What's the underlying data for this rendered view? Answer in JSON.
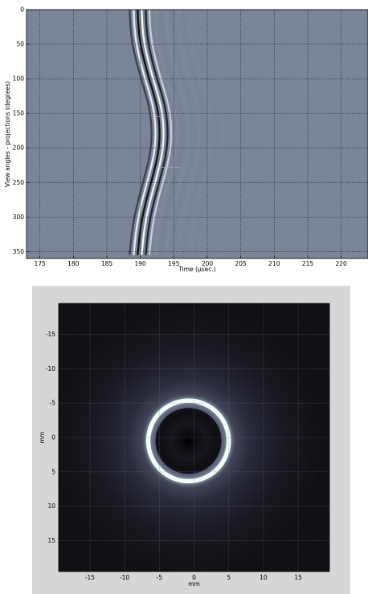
{
  "chart_data": [
    {
      "type": "heatmap",
      "title": "",
      "xlabel": "Time (μsec.)",
      "ylabel": "View angles - projections (degrees)",
      "xlim": [
        173,
        224
      ],
      "ylim": [
        0,
        360
      ],
      "y_inverted": true,
      "xticks": [
        175,
        180,
        185,
        190,
        195,
        200,
        205,
        210,
        215,
        220
      ],
      "yticks": [
        0,
        50,
        100,
        150,
        200,
        250,
        300,
        350
      ],
      "grid": true,
      "colormap": "gray",
      "background_color": "#7b8598",
      "series": [
        {
          "name": "",
          "x": [
            189.6,
            189.7,
            190.0,
            190.6,
            191.3,
            192.1,
            192.7,
            192.9,
            192.8,
            192.3,
            191.6,
            190.9,
            190.3,
            189.9,
            189.6
          ],
          "y": [
            0,
            25,
            50,
            75,
            100,
            125,
            150,
            175,
            200,
            225,
            250,
            275,
            300,
            325,
            355
          ]
        }
      ]
    },
    {
      "type": "heatmap",
      "title": "",
      "xlabel": "mm",
      "ylabel": "mm",
      "xlim": [
        -19.5,
        19.5
      ],
      "ylim": [
        -19.5,
        19.5
      ],
      "y_inverted": true,
      "xticks": [
        -15,
        -10,
        -5,
        0,
        5,
        10,
        15
      ],
      "yticks": [
        -15,
        -10,
        -5,
        0,
        5,
        10,
        15
      ],
      "grid": true,
      "colormap": "bone",
      "ring": {
        "center": [
          -0.8,
          0.5
        ],
        "radius": 5.8
      }
    }
  ]
}
